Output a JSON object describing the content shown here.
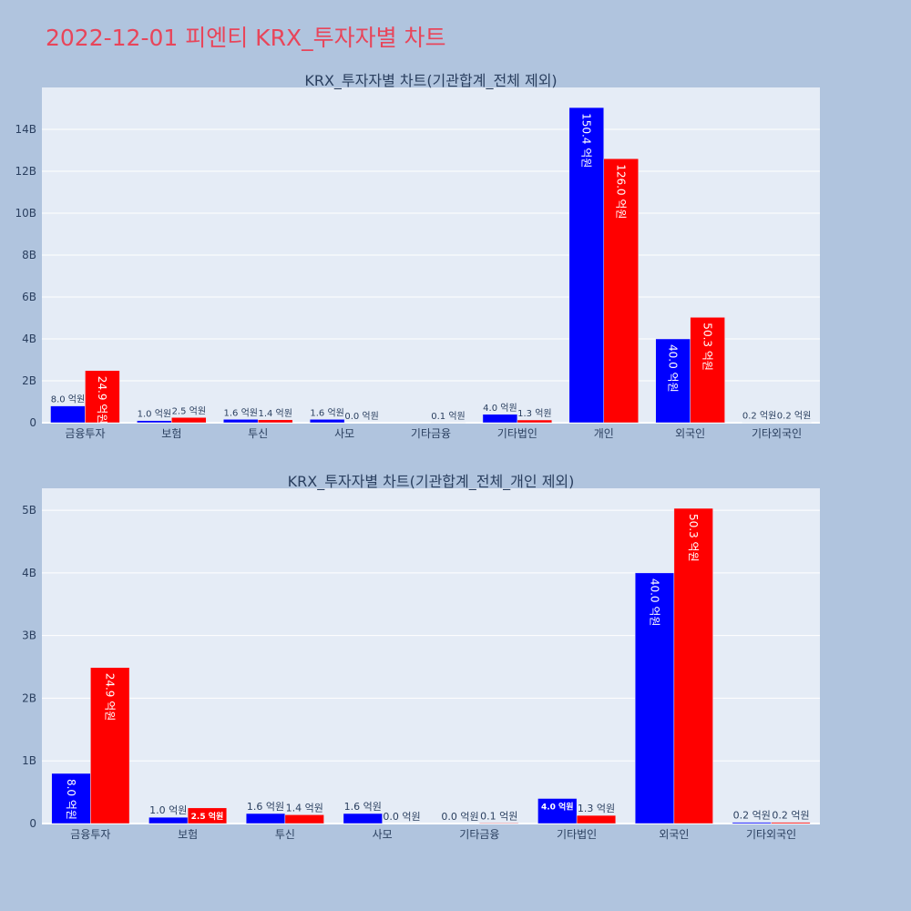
{
  "page": {
    "title": "2022-12-01 피엔티 KRX_투자자별 차트"
  },
  "colors": {
    "background": "#b0c4de",
    "plot_bg": "#e5ecf6",
    "grid": "#ffffff",
    "series1": "#0000ff",
    "series2": "#ff0000",
    "title": "#e8455a",
    "text": "#2a3f5f"
  },
  "chart_data": [
    {
      "type": "bar",
      "title": "KRX_투자자별 차트(기관합계_전체 제외)",
      "categories": [
        "금융투자",
        "보험",
        "투신",
        "사모",
        "기타금융",
        "기타법인",
        "개인",
        "외국인",
        "기타외국인"
      ],
      "series": [
        {
          "values": [
            0.8,
            0.1,
            0.16,
            0.16,
            0.0,
            0.4,
            15.04,
            4.0,
            0.02
          ],
          "labels": [
            "8.0 억원",
            "1.0 억원",
            "1.6 억원",
            "1.6 억원",
            "",
            "4.0 억원",
            "150.4 억원",
            "40.0 억원",
            "0.2 억원"
          ]
        },
        {
          "values": [
            2.49,
            0.25,
            0.14,
            0.0,
            0.01,
            0.13,
            12.6,
            5.03,
            0.02
          ],
          "labels": [
            "24.9 억원",
            "2.5 억원",
            "1.4 억원",
            "0.0 억원",
            "0.1 억원",
            "1.3 억원",
            "126.0 억원",
            "50.3 억원",
            "0.2 억원"
          ]
        }
      ],
      "ylim": [
        0,
        16
      ],
      "yticks": [
        0,
        2,
        4,
        6,
        8,
        10,
        12,
        14
      ],
      "ytick_labels": [
        "0",
        "2B",
        "4B",
        "6B",
        "8B",
        "10B",
        "12B",
        "14B"
      ],
      "grid": true
    },
    {
      "type": "bar",
      "title": "KRX_투자자별 차트(기관합계_전체_개인 제외)",
      "categories": [
        "금융투자",
        "보험",
        "투신",
        "사모",
        "기타금융",
        "기타법인",
        "외국인",
        "기타외국인"
      ],
      "series": [
        {
          "values": [
            0.8,
            0.1,
            0.16,
            0.16,
            0.0,
            0.4,
            4.0,
            0.02
          ],
          "labels": [
            "8.0 억원",
            "1.0 억원",
            "1.6 억원",
            "1.6 억원",
            "0.0 억원",
            "4.0 억원",
            "40.0 억원",
            "0.2 억원"
          ]
        },
        {
          "values": [
            2.49,
            0.25,
            0.14,
            0.0,
            0.01,
            0.13,
            5.03,
            0.02
          ],
          "labels": [
            "24.9 억원",
            "2.5 억원",
            "1.4 억원",
            "0.0 억원",
            "0.1 억원",
            "1.3 억원",
            "50.3 억원",
            "0.2 억원"
          ]
        }
      ],
      "ylim": [
        0,
        5.35
      ],
      "yticks": [
        0,
        1,
        2,
        3,
        4,
        5
      ],
      "ytick_labels": [
        "0",
        "1B",
        "2B",
        "3B",
        "4B",
        "5B"
      ],
      "grid": true
    }
  ]
}
